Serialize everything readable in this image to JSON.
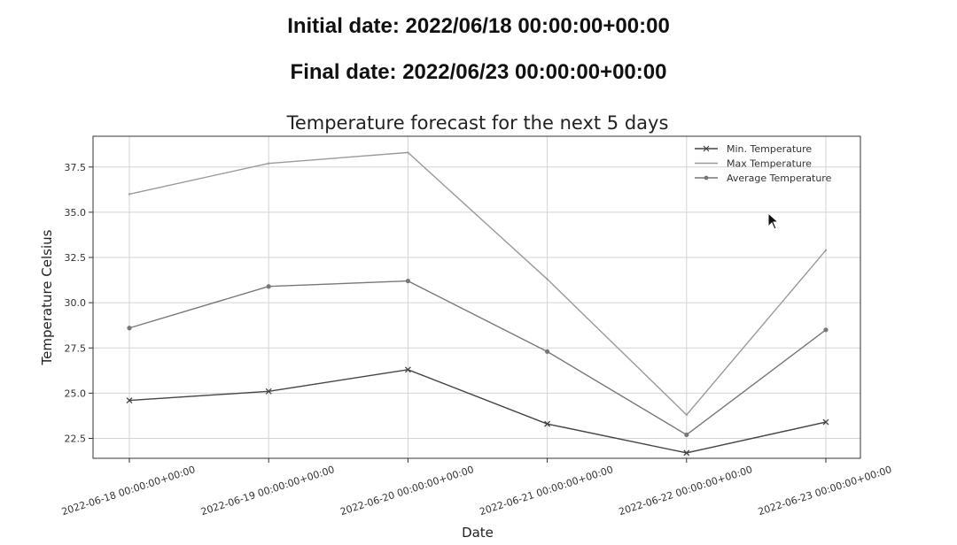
{
  "header": {
    "initial_date": "Initial date: 2022/06/18 00:00:00+00:00",
    "final_date": "Final date: 2022/06/23 00:00:00+00:00"
  },
  "chart_data": {
    "type": "line",
    "title": "Temperature forecast for the next 5 days",
    "xlabel": "Date",
    "ylabel": "Temperature Celsius",
    "categories": [
      "2022-06-18 00:00:00+00:00",
      "2022-06-19 00:00:00+00:00",
      "2022-06-20 00:00:00+00:00",
      "2022-06-21 00:00:00+00:00",
      "2022-06-22 00:00:00+00:00",
      "2022-06-23 00:00:00+00:00"
    ],
    "series": [
      {
        "name": "Min. Temperature",
        "values": [
          24.6,
          25.1,
          26.3,
          23.3,
          21.7,
          23.4
        ],
        "color": "#444444",
        "marker": "x"
      },
      {
        "name": "Max Temperature",
        "values": [
          36.0,
          37.7,
          38.3,
          31.3,
          23.8,
          32.9
        ],
        "color": "#9a9a9a",
        "marker": "none"
      },
      {
        "name": "Average Temperature",
        "values": [
          28.6,
          30.9,
          31.2,
          27.3,
          22.7,
          28.5
        ],
        "color": "#777777",
        "marker": "dot"
      }
    ],
    "yticks": [
      "22.5",
      "25.0",
      "27.5",
      "30.0",
      "32.5",
      "35.0",
      "37.5"
    ],
    "ylim": [
      21.4,
      39.2
    ],
    "grid": true,
    "legend_position": "top-right",
    "xtick_rotation": "rotated about 20 degrees"
  }
}
